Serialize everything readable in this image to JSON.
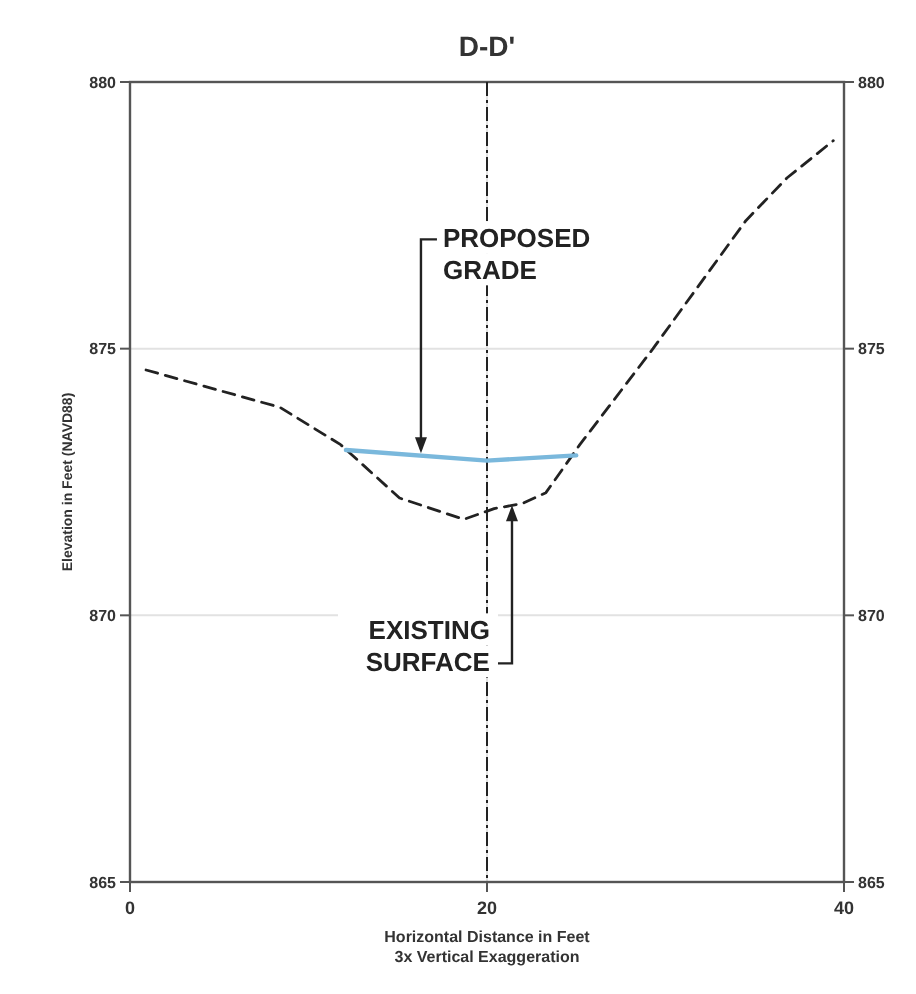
{
  "chart_data": {
    "type": "line",
    "title": "D-D'",
    "xlabel": "Horizontal Distance in Feet\n3x Vertical Exaggeration",
    "ylabel": "Elevation in Feet (NAVD88)",
    "xlim": [
      0,
      40
    ],
    "xticks": [
      0,
      20,
      40
    ],
    "ylim": [
      865,
      880
    ],
    "yticks": [
      865,
      870,
      875,
      880
    ],
    "y2lim": [
      865,
      880
    ],
    "y2ticks": [
      865,
      870,
      875,
      880
    ],
    "grid": true,
    "marker": "none",
    "series": [
      {
        "color": "#222222",
        "line_style": "dashed",
        "x": [
          0.9,
          8.4,
          11.8,
          15.1,
          18.7,
          20.4,
          22.0,
          23.3,
          25.2,
          29.3,
          34.5,
          36.8,
          39.4
        ],
        "values": [
          874.6,
          873.9,
          873.2,
          872.2,
          871.8,
          872.0,
          872.1,
          872.3,
          873.2,
          875.0,
          877.4,
          878.2,
          878.9
        ]
      },
      {
        "color": "#7ab8dc",
        "line_style": "solid",
        "x": [
          12.1,
          20.0,
          25.0
        ],
        "values": [
          873.1,
          872.9,
          873.0
        ]
      }
    ],
    "ref_lines": [
      {
        "axis": "x",
        "value": 20,
        "color": "#222222",
        "line_style": "dashed"
      }
    ],
    "annotations": [
      {
        "text": "PROPOSED GRADE",
        "x": 16.3,
        "y": 873.0
      },
      {
        "text": "EXISTING SURFACE",
        "x": 21.4,
        "y": 872.1
      }
    ]
  }
}
